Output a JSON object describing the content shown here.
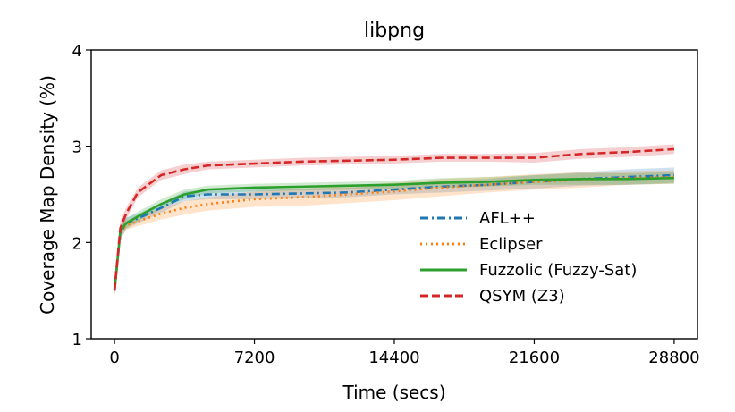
{
  "chart_data": {
    "type": "line",
    "title": "libpng",
    "xlabel": "Time (secs)",
    "ylabel": "Coverage Map Density (%)",
    "xlim": [
      -1200,
      30000
    ],
    "ylim": [
      1,
      4
    ],
    "xticks": [
      0,
      7200,
      14400,
      21600,
      28800
    ],
    "yticks": [
      1,
      2,
      3,
      4
    ],
    "legend_position": "lower-right",
    "grid": false,
    "series": [
      {
        "name": "AFL++",
        "color": "#1f77b4",
        "style": "dashdot",
        "x": [
          0,
          300,
          600,
          1200,
          2400,
          3600,
          4800,
          7200,
          9600,
          12000,
          14400,
          16800,
          19200,
          21600,
          24000,
          26400,
          28800
        ],
        "values": [
          1.5,
          2.1,
          2.2,
          2.25,
          2.36,
          2.48,
          2.5,
          2.5,
          2.51,
          2.52,
          2.55,
          2.58,
          2.6,
          2.63,
          2.66,
          2.68,
          2.7
        ],
        "band": [
          0.05,
          0.08,
          0.06,
          0.05,
          0.05,
          0.05,
          0.05,
          0.05,
          0.05,
          0.05,
          0.05,
          0.06,
          0.06,
          0.07,
          0.07,
          0.08,
          0.08
        ]
      },
      {
        "name": "Eclipser",
        "color": "#ff7f0e",
        "style": "dotted",
        "x": [
          0,
          300,
          600,
          1200,
          2400,
          3600,
          4800,
          7200,
          9600,
          12000,
          14400,
          16800,
          19200,
          21600,
          24000,
          26400,
          28800
        ],
        "values": [
          1.5,
          2.1,
          2.18,
          2.22,
          2.3,
          2.36,
          2.4,
          2.45,
          2.47,
          2.5,
          2.53,
          2.57,
          2.6,
          2.63,
          2.65,
          2.67,
          2.68
        ],
        "band": [
          0.05,
          0.06,
          0.05,
          0.05,
          0.06,
          0.07,
          0.07,
          0.08,
          0.09,
          0.09,
          0.09,
          0.09,
          0.08,
          0.08,
          0.08,
          0.07,
          0.07
        ]
      },
      {
        "name": "Fuzzolic (Fuzzy-Sat)",
        "color": "#2ca02c",
        "style": "solid",
        "x": [
          0,
          300,
          600,
          1200,
          2400,
          3600,
          4800,
          7200,
          9600,
          12000,
          14400,
          16800,
          19200,
          21600,
          24000,
          26400,
          28800
        ],
        "values": [
          1.5,
          2.12,
          2.2,
          2.27,
          2.4,
          2.5,
          2.55,
          2.57,
          2.58,
          2.59,
          2.6,
          2.62,
          2.63,
          2.65,
          2.66,
          2.66,
          2.67
        ],
        "band": [
          0.05,
          0.06,
          0.05,
          0.05,
          0.05,
          0.05,
          0.04,
          0.04,
          0.04,
          0.04,
          0.04,
          0.05,
          0.05,
          0.05,
          0.06,
          0.06,
          0.06
        ]
      },
      {
        "name": "QSYM (Z3)",
        "color": "#d62728",
        "style": "dashed",
        "x": [
          0,
          300,
          600,
          1200,
          2400,
          3600,
          4800,
          7200,
          9600,
          12000,
          14400,
          16800,
          19200,
          21600,
          24000,
          26400,
          28800
        ],
        "values": [
          1.5,
          2.15,
          2.3,
          2.52,
          2.7,
          2.76,
          2.8,
          2.82,
          2.84,
          2.85,
          2.86,
          2.88,
          2.88,
          2.88,
          2.92,
          2.94,
          2.97
        ],
        "band": [
          0.05,
          0.08,
          0.06,
          0.05,
          0.05,
          0.05,
          0.04,
          0.04,
          0.04,
          0.04,
          0.04,
          0.04,
          0.04,
          0.05,
          0.05,
          0.05,
          0.05
        ]
      }
    ]
  }
}
